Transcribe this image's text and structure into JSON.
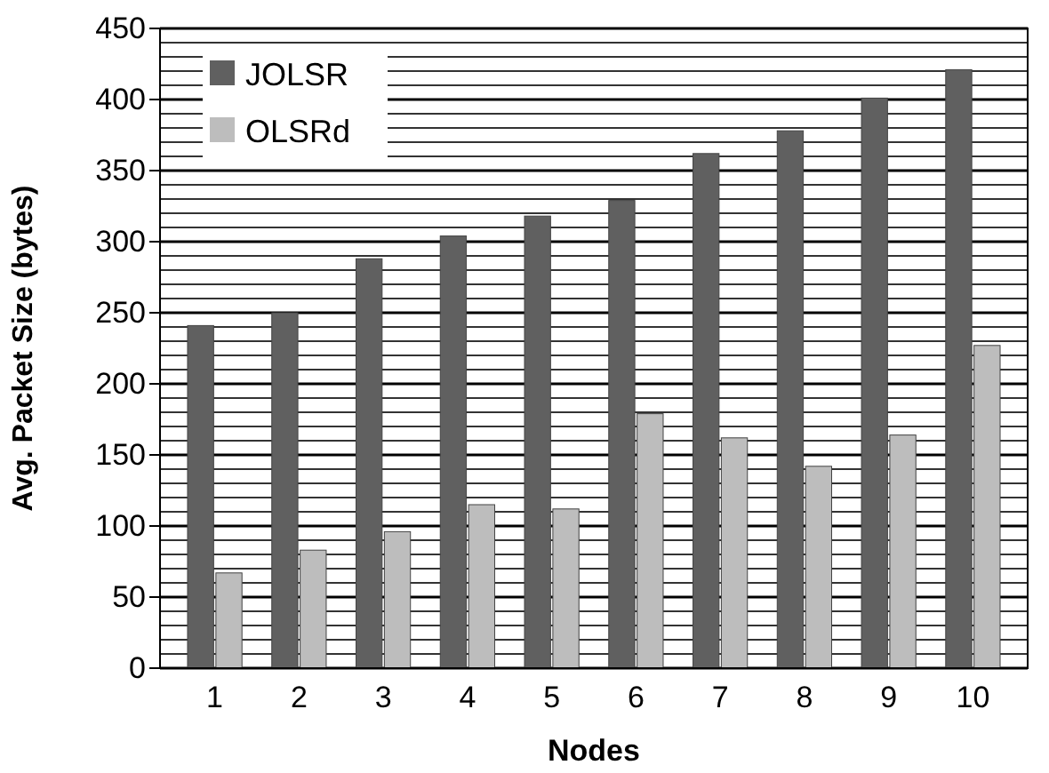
{
  "chart_data": {
    "type": "bar",
    "xlabel": "Nodes",
    "ylabel": "Avg. Packet Size (bytes)",
    "categories": [
      "1",
      "2",
      "3",
      "4",
      "5",
      "6",
      "7",
      "8",
      "9",
      "10"
    ],
    "series": [
      {
        "name": "JOLSR",
        "color": "#606060",
        "values": [
          241,
          250,
          288,
          304,
          318,
          329,
          362,
          378,
          401,
          421
        ]
      },
      {
        "name": "OLSRd",
        "color": "#bdbdbd",
        "values": [
          67,
          83,
          96,
          115,
          112,
          179,
          162,
          142,
          164,
          227
        ]
      }
    ],
    "ylim": [
      0,
      450
    ],
    "yticks": [
      0,
      {
        "value": 10,
        "label": null
      },
      {
        "value": 20,
        "label": null
      },
      {
        "value": 30,
        "label": null
      },
      {
        "value": 40,
        "label": null
      },
      50,
      {
        "value": 60,
        "label": null
      },
      {
        "value": 70,
        "label": null
      },
      {
        "value": 80,
        "label": null
      },
      {
        "value": 90,
        "label": null
      },
      100,
      {
        "value": 110,
        "label": null
      },
      {
        "value": 120,
        "label": null
      },
      {
        "value": 130,
        "label": null
      },
      {
        "value": 140,
        "label": null
      },
      150,
      {
        "value": 160,
        "label": null
      },
      {
        "value": 170,
        "label": null
      },
      {
        "value": 180,
        "label": null
      },
      {
        "value": 190,
        "label": null
      },
      200,
      {
        "value": 210,
        "label": null
      },
      {
        "value": 220,
        "label": null
      },
      {
        "value": 230,
        "label": null
      },
      {
        "value": 240,
        "label": null
      },
      250,
      {
        "value": 260,
        "label": null
      },
      {
        "value": 270,
        "label": null
      },
      {
        "value": 280,
        "label": null
      },
      {
        "value": 290,
        "label": null
      },
      300,
      {
        "value": 310,
        "label": null
      },
      {
        "value": 320,
        "label": null
      },
      {
        "value": 330,
        "label": null
      },
      {
        "value": 340,
        "label": null
      },
      350,
      {
        "value": 360,
        "label": null
      },
      {
        "value": 370,
        "label": null
      },
      {
        "value": 380,
        "label": null
      },
      {
        "value": 390,
        "label": null
      },
      400,
      {
        "value": 410,
        "label": null
      },
      {
        "value": 420,
        "label": null
      },
      {
        "value": 430,
        "label": null
      },
      {
        "value": 440,
        "label": null
      },
      450
    ],
    "grid": "y",
    "legend": "top left"
  }
}
